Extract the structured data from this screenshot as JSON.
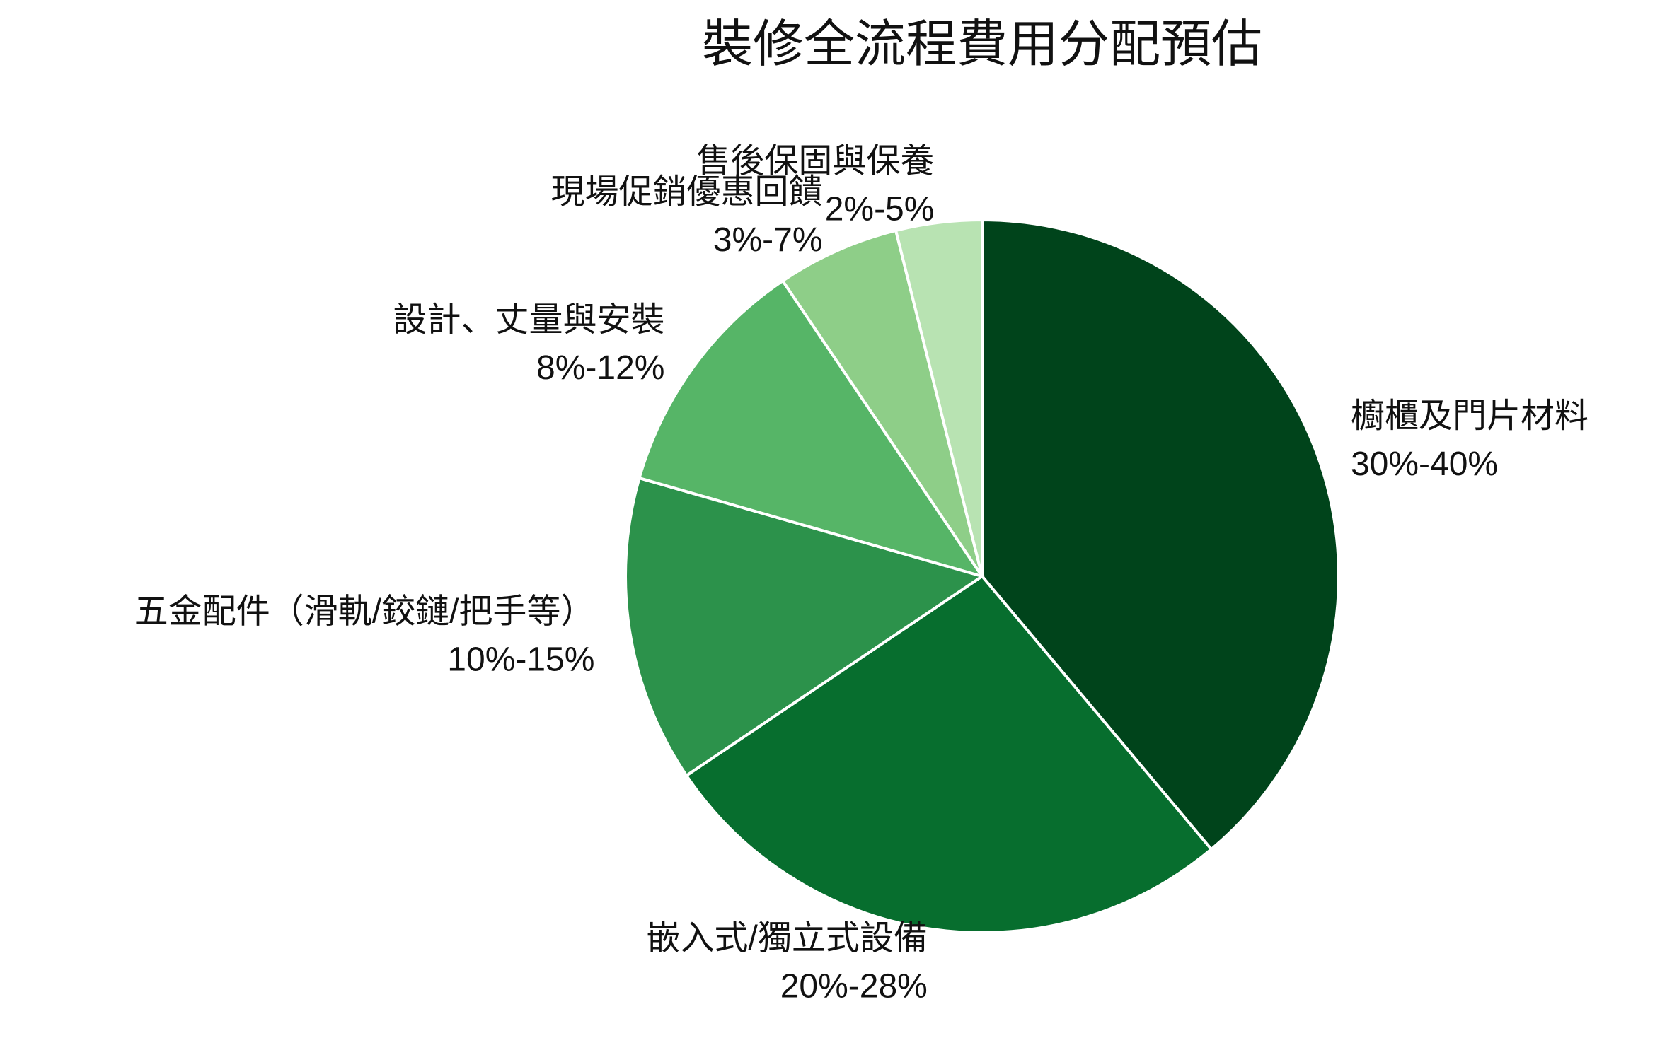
{
  "chart_data": {
    "type": "pie",
    "title": "裝修全流程費用分配預估",
    "categories": [
      "櫥櫃及門片材料",
      "嵌入式/獨立式設備",
      "五金配件（滑軌/鉸鏈/把手等）",
      "設計、丈量與安裝",
      "現場促銷優惠回饋",
      "售後保固與保養"
    ],
    "range_labels": [
      "30%-40%",
      "20%-28%",
      "10%-15%",
      "8%-12%",
      "3%-7%",
      "2%-5%"
    ],
    "values": [
      35,
      24,
      12.5,
      10,
      5,
      3.5
    ],
    "colors": [
      "#00441b",
      "#076e2e",
      "#2c924b",
      "#56b567",
      "#8ece88",
      "#b8e3b2"
    ]
  }
}
